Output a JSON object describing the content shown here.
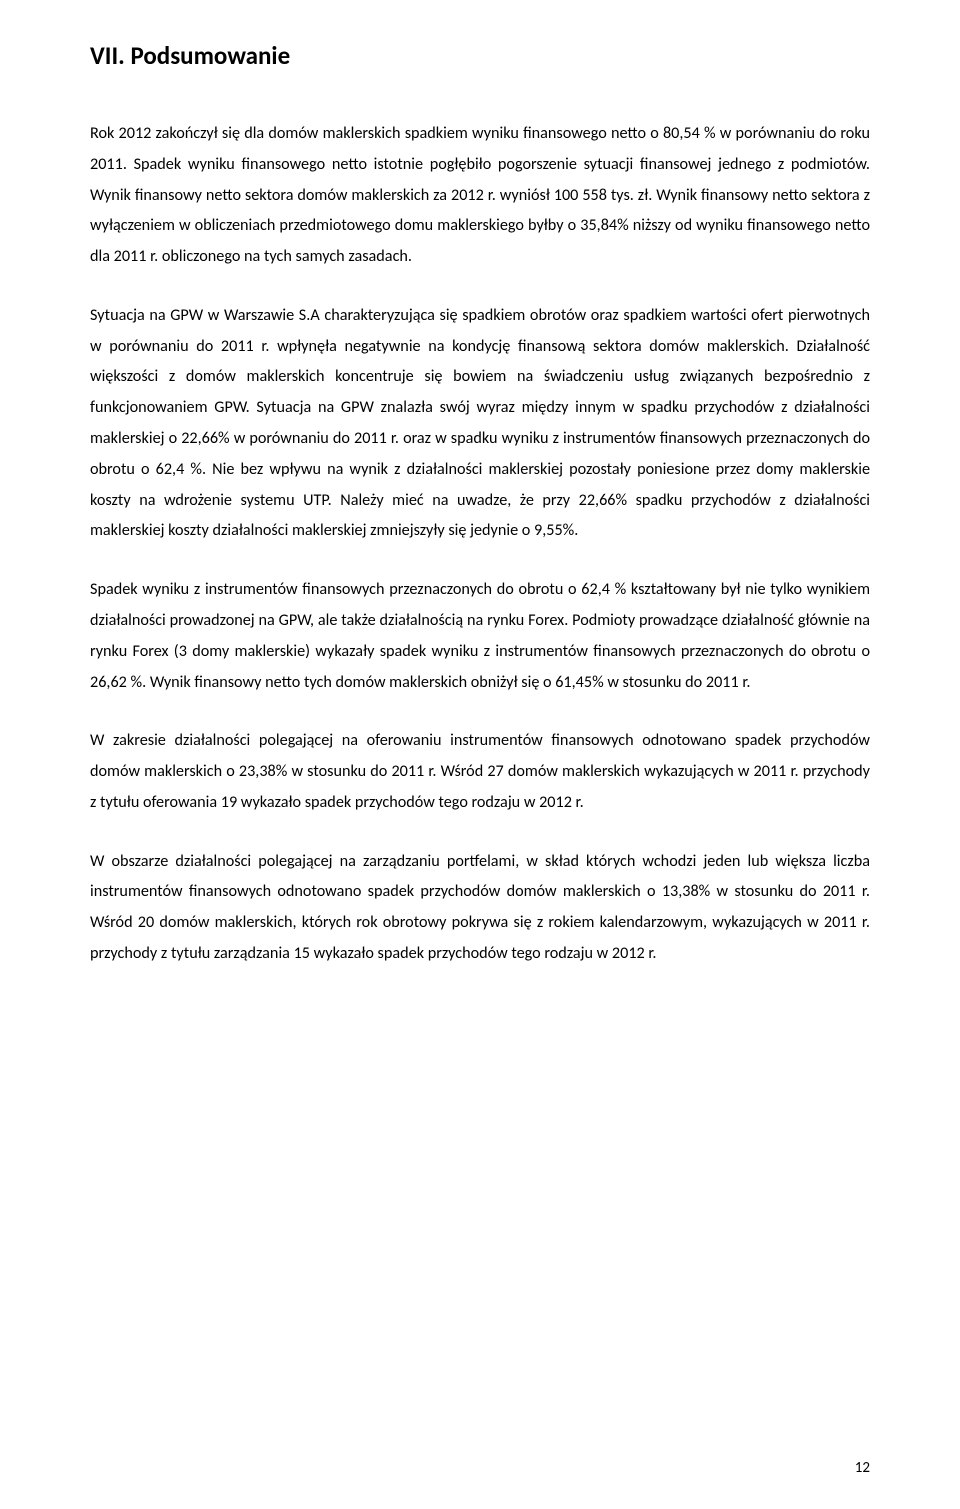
{
  "heading": "VII. Podsumowanie",
  "paragraphs": {
    "p1": "Rok 2012 zakończył się dla domów maklerskich spadkiem wyniku finansowego netto o 80,54 % w porównaniu do roku 2011. Spadek wyniku finansowego netto istotnie pogłębiło pogorszenie sytuacji finansowej jednego z podmiotów. Wynik finansowy netto sektora domów maklerskich za 2012 r. wyniósł 100 558 tys. zł. Wynik finansowy netto sektora z wyłączeniem w obliczeniach przedmiotowego domu maklerskiego byłby o 35,84% niższy od wyniku finansowego netto dla 2011 r. obliczonego na tych samych zasadach.",
    "p2": "Sytuacja na GPW w Warszawie S.A charakteryzująca się spadkiem obrotów oraz spadkiem wartości ofert pierwotnych w porównaniu do 2011 r. wpłynęła negatywnie na kondycję finansową sektora domów maklerskich. Działalność większości z domów maklerskich koncentruje się bowiem na świadczeniu usług związanych bezpośrednio z funkcjonowaniem GPW. Sytuacja na GPW znalazła swój wyraz między innym w spadku przychodów z działalności maklerskiej o 22,66% w porównaniu do 2011 r. oraz w spadku wyniku z instrumentów finansowych przeznaczonych do obrotu o 62,4 %. Nie bez wpływu na wynik z działalności maklerskiej pozostały poniesione przez domy maklerskie koszty na wdrożenie systemu UTP. Należy mieć na uwadze, że przy 22,66% spadku przychodów z działalności maklerskiej koszty działalności maklerskiej zmniejszyły się jedynie o 9,55%.",
    "p3": "Spadek wyniku z instrumentów finansowych przeznaczonych do obrotu o 62,4 % kształtowany był nie tylko wynikiem działalności prowadzonej na GPW, ale także działalnością na rynku Forex. Podmioty prowadzące działalność głównie na rynku Forex (3 domy maklerskie) wykazały spadek  wyniku z instrumentów finansowych przeznaczonych do obrotu o 26,62 %. Wynik finansowy netto tych domów maklerskich obniżył się o 61,45% w stosunku do 2011 r.",
    "p4": "W zakresie działalności polegającej na oferowaniu instrumentów finansowych odnotowano spadek przychodów domów maklerskich o 23,38% w stosunku do 2011 r. Wśród 27 domów maklerskich wykazujących w 2011 r. przychody z tytułu oferowania 19 wykazało spadek przychodów tego rodzaju w 2012 r.",
    "p5": " W obszarze działalności polegającej na zarządzaniu portfelami, w skład których wchodzi jeden lub większa liczba instrumentów finansowych odnotowano spadek przychodów domów maklerskich o 13,38% w stosunku do 2011 r. Wśród 20 domów maklerskich, których rok obrotowy pokrywa się z rokiem kalendarzowym, wykazujących w 2011 r. przychody z tytułu zarządzania 15 wykazało spadek przychodów tego rodzaju w 2012 r."
  },
  "pageNumber": "12",
  "style": {
    "background": "#ffffff",
    "textColor": "#000000",
    "headingFontSize": 25,
    "bodyFontSize": 16.2,
    "lineHeight": 1.9,
    "pageWidth": 960,
    "pageHeight": 1509
  }
}
